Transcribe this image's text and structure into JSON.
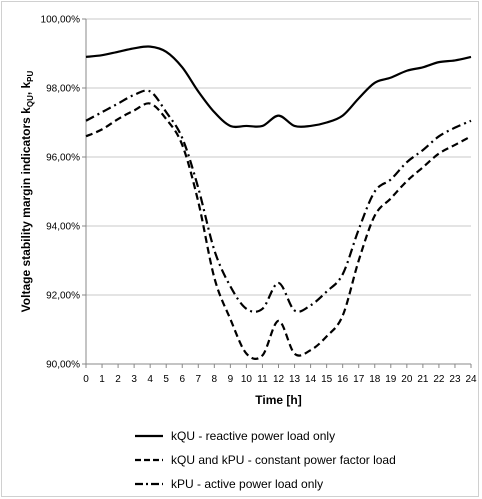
{
  "chart_data": {
    "type": "line",
    "title": "",
    "xlabel": "Time [h]",
    "ylabel": "Voltage stability margin indicators k",
    "ylabel_sub": "QU",
    "ylabel_sep": ", k",
    "ylabel_sub2": "PU",
    "xlim": [
      0,
      24
    ],
    "ylim": [
      90,
      100
    ],
    "x_ticks": [
      "0",
      "1",
      "2",
      "3",
      "4",
      "5",
      "6",
      "7",
      "8",
      "9",
      "10",
      "11",
      "12",
      "13",
      "14",
      "15",
      "16",
      "17",
      "18",
      "19",
      "20",
      "21",
      "22",
      "23",
      "24"
    ],
    "y_ticks": [
      "90,00%",
      "92,00%",
      "94,00%",
      "96,00%",
      "98,00%",
      "100,00%"
    ],
    "y_tick_values": [
      90,
      92,
      94,
      96,
      98,
      100
    ],
    "grid": "horizontal",
    "legend_position": "bottom",
    "x": [
      0,
      1,
      2,
      3,
      4,
      5,
      6,
      7,
      8,
      9,
      10,
      11,
      12,
      13,
      14,
      15,
      16,
      17,
      18,
      19,
      20,
      21,
      22,
      23,
      24
    ],
    "series": [
      {
        "name": "kQU - reactive power load only",
        "style": "solid",
        "color": "#000000",
        "values": [
          98.9,
          98.95,
          99.05,
          99.15,
          99.2,
          99.05,
          98.6,
          97.9,
          97.3,
          96.9,
          96.9,
          96.9,
          97.2,
          96.9,
          96.9,
          97.0,
          97.2,
          97.7,
          98.15,
          98.3,
          98.5,
          98.6,
          98.75,
          98.8,
          98.9
        ]
      },
      {
        "name": "kQU and kPU - constant power factor load",
        "style": "dashed",
        "color": "#000000",
        "values": [
          96.6,
          96.8,
          97.1,
          97.35,
          97.55,
          97.1,
          96.35,
          94.7,
          92.5,
          91.3,
          90.3,
          90.25,
          91.25,
          90.3,
          90.4,
          90.8,
          91.4,
          93.0,
          94.3,
          94.8,
          95.3,
          95.7,
          96.1,
          96.35,
          96.6
        ]
      },
      {
        "name": "kPU - active power load only",
        "style": "dashdot",
        "color": "#000000",
        "values": [
          97.05,
          97.3,
          97.55,
          97.8,
          97.9,
          97.3,
          96.55,
          95.1,
          93.3,
          92.25,
          91.6,
          91.6,
          92.35,
          91.55,
          91.7,
          92.1,
          92.6,
          93.9,
          95.0,
          95.35,
          95.85,
          96.2,
          96.6,
          96.85,
          97.05
        ]
      }
    ]
  }
}
